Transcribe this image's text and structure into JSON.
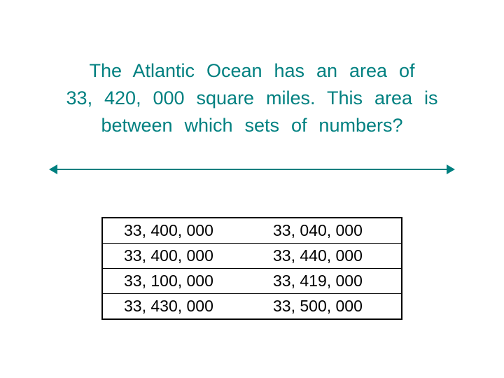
{
  "colors": {
    "teal": "#008080",
    "black": "#000000",
    "background": "#ffffff"
  },
  "question": {
    "line1": "The  Atlantic  Ocean  has  an  area  of",
    "line2": "33, 420, 000  square  miles.  This  area  is",
    "line3": "between  which  sets  of  numbers?",
    "fontsize": 27
  },
  "number_line": {
    "has_left_arrow": true,
    "has_right_arrow": true,
    "color": "#008080"
  },
  "options": {
    "type": "table",
    "columns": 2,
    "rows": [
      {
        "left": "33, 400, 000",
        "right": "33, 040, 000"
      },
      {
        "left": "33, 400, 000",
        "right": "33, 440, 000"
      },
      {
        "left": "33, 100, 000",
        "right": "33, 419, 000"
      },
      {
        "left": "33, 430, 000",
        "right": "33, 500, 000"
      }
    ],
    "fontsize": 23,
    "border_color": "#000000"
  }
}
